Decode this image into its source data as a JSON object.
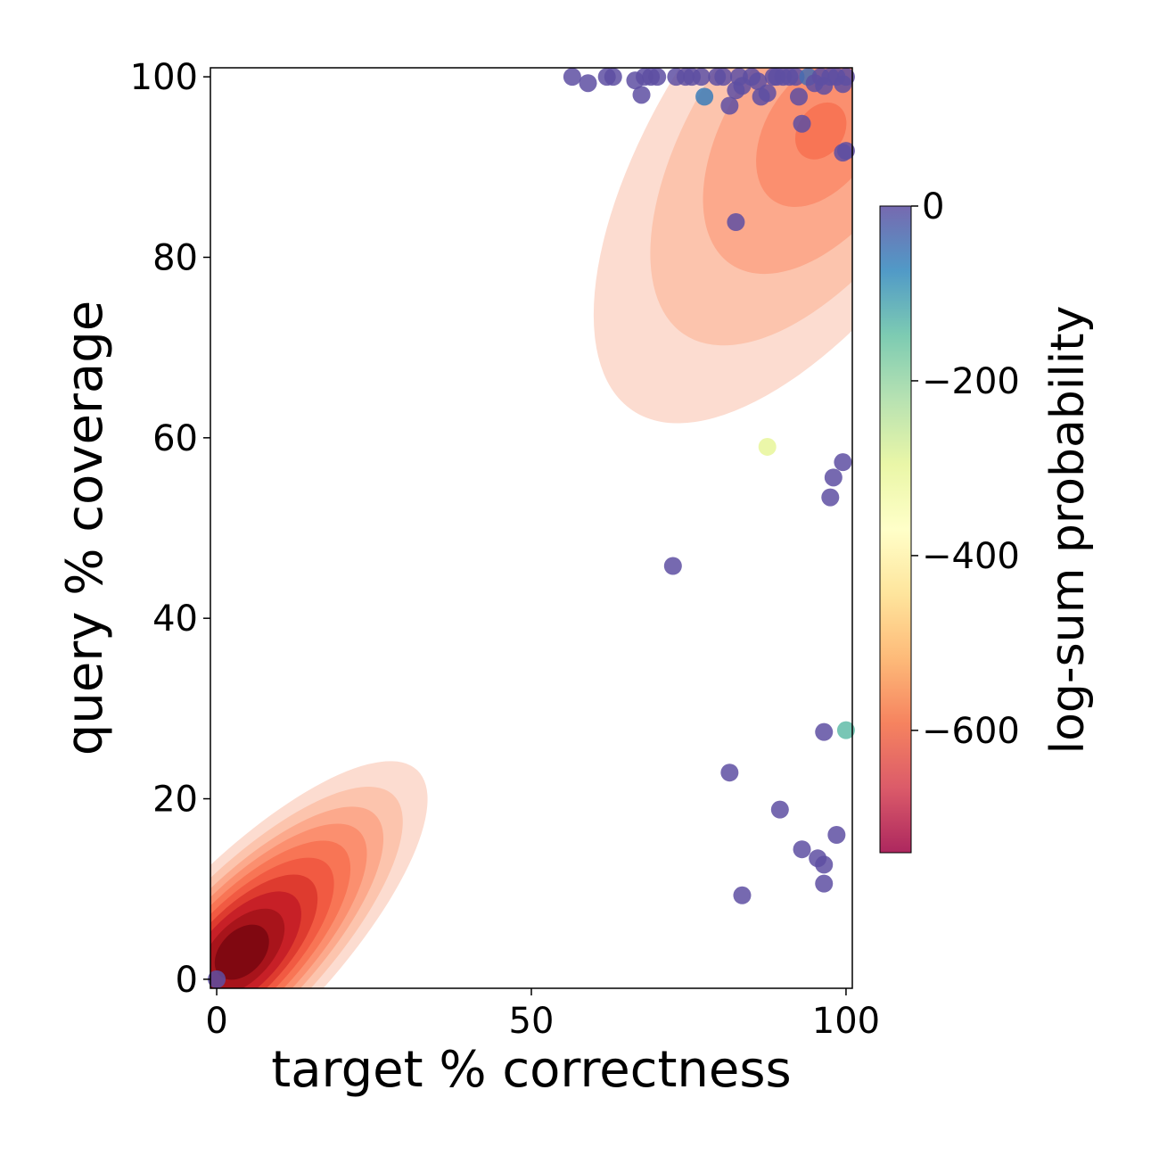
{
  "chart_data": {
    "type": "scatter",
    "xlabel": "target % correctness",
    "ylabel": "query % coverage",
    "xlim": [
      -1,
      101
    ],
    "ylim": [
      -1,
      101
    ],
    "x_ticks": [
      0,
      50,
      100
    ],
    "y_ticks": [
      0,
      20,
      40,
      60,
      80,
      100
    ],
    "grid": false,
    "density_contours": [
      {
        "name": "low-region",
        "center": [
          4,
          3
        ],
        "spread": [
          10,
          10
        ],
        "orientation_deg": 46,
        "levels": [
          {
            "sx": 3.3,
            "sy": 1.1,
            "color": "#fcdcd0"
          },
          {
            "sx": 2.85,
            "sy": 0.98,
            "color": "#fcc4ad"
          },
          {
            "sx": 2.5,
            "sy": 0.88,
            "color": "#fca98c"
          },
          {
            "sx": 2.2,
            "sy": 0.8,
            "color": "#fb8f6f"
          },
          {
            "sx": 1.9,
            "sy": 0.72,
            "color": "#f87555"
          },
          {
            "sx": 1.6,
            "sy": 0.64,
            "color": "#f15a42"
          },
          {
            "sx": 1.3,
            "sy": 0.56,
            "color": "#de3b2f"
          },
          {
            "sx": 1.0,
            "sy": 0.48,
            "color": "#c72027"
          },
          {
            "sx": 0.7,
            "sy": 0.38,
            "color": "#a8141b"
          },
          {
            "sx": 0.42,
            "sy": 0.28,
            "color": "#800811"
          }
        ]
      },
      {
        "name": "high-region",
        "center": [
          96,
          94
        ],
        "spread": [
          10,
          10
        ],
        "orientation_deg": 56,
        "levels": [
          {
            "sx": 4.4,
            "sy": 2.0,
            "color": "#fcdcd0"
          },
          {
            "sx": 3.2,
            "sy": 1.6,
            "color": "#fcc4ad"
          },
          {
            "sx": 2.1,
            "sy": 1.2,
            "color": "#fca98c"
          },
          {
            "sx": 1.1,
            "sy": 0.7,
            "color": "#fb8f6f"
          },
          {
            "sx": 0.4,
            "sy": 0.3,
            "color": "#f87555"
          }
        ]
      }
    ],
    "points": [
      {
        "x": 0,
        "y": 0,
        "c": 0
      },
      {
        "x": 56.5,
        "y": 100,
        "c": 0
      },
      {
        "x": 59,
        "y": 99.3,
        "c": 0
      },
      {
        "x": 62,
        "y": 100,
        "c": 0
      },
      {
        "x": 63,
        "y": 100,
        "c": 0
      },
      {
        "x": 66.5,
        "y": 99.6,
        "c": 0
      },
      {
        "x": 67.5,
        "y": 98,
        "c": 0
      },
      {
        "x": 68,
        "y": 100,
        "c": 0
      },
      {
        "x": 69,
        "y": 100,
        "c": 0
      },
      {
        "x": 70,
        "y": 100,
        "c": 0
      },
      {
        "x": 73,
        "y": 100,
        "c": 0
      },
      {
        "x": 74.5,
        "y": 100,
        "c": 0
      },
      {
        "x": 75.5,
        "y": 100,
        "c": 0
      },
      {
        "x": 77,
        "y": 100,
        "c": 0
      },
      {
        "x": 77.5,
        "y": 97.8,
        "c": -60
      },
      {
        "x": 79.5,
        "y": 100,
        "c": 0
      },
      {
        "x": 80.5,
        "y": 100,
        "c": 0
      },
      {
        "x": 81.5,
        "y": 96.8,
        "c": 0
      },
      {
        "x": 82.5,
        "y": 98.5,
        "c": 0
      },
      {
        "x": 83,
        "y": 100,
        "c": 0
      },
      {
        "x": 83.5,
        "y": 99,
        "c": 0
      },
      {
        "x": 85,
        "y": 100,
        "c": 0
      },
      {
        "x": 86,
        "y": 99.5,
        "c": 0
      },
      {
        "x": 86.5,
        "y": 97.8,
        "c": 0
      },
      {
        "x": 87.5,
        "y": 98.2,
        "c": 0
      },
      {
        "x": 88.5,
        "y": 100,
        "c": 0
      },
      {
        "x": 89,
        "y": 100,
        "c": 0
      },
      {
        "x": 90,
        "y": 100,
        "c": 0
      },
      {
        "x": 91,
        "y": 100,
        "c": 0
      },
      {
        "x": 92,
        "y": 100,
        "c": 0
      },
      {
        "x": 92.5,
        "y": 97.8,
        "c": 0
      },
      {
        "x": 93,
        "y": 94.8,
        "c": 0
      },
      {
        "x": 94,
        "y": 100,
        "c": -40
      },
      {
        "x": 95,
        "y": 99.3,
        "c": 0
      },
      {
        "x": 96,
        "y": 100,
        "c": 0
      },
      {
        "x": 96.5,
        "y": 99,
        "c": 0
      },
      {
        "x": 97.5,
        "y": 100,
        "c": 0
      },
      {
        "x": 98.5,
        "y": 100,
        "c": 0
      },
      {
        "x": 99.5,
        "y": 99.2,
        "c": 0
      },
      {
        "x": 100,
        "y": 100,
        "c": 0
      },
      {
        "x": 100,
        "y": 91.8,
        "c": 0
      },
      {
        "x": 99.5,
        "y": 91.6,
        "c": 0
      },
      {
        "x": 82.5,
        "y": 83.9,
        "c": 0
      },
      {
        "x": 87.5,
        "y": 59,
        "c": -300
      },
      {
        "x": 99.5,
        "y": 57.3,
        "c": 0
      },
      {
        "x": 98,
        "y": 55.6,
        "c": 0
      },
      {
        "x": 97.5,
        "y": 53.4,
        "c": 0
      },
      {
        "x": 72.5,
        "y": 45.8,
        "c": 0
      },
      {
        "x": 100,
        "y": 27.6,
        "c": -140
      },
      {
        "x": 96.5,
        "y": 27.4,
        "c": 0
      },
      {
        "x": 81.5,
        "y": 22.9,
        "c": 0
      },
      {
        "x": 89.5,
        "y": 18.8,
        "c": 0
      },
      {
        "x": 98.5,
        "y": 16,
        "c": 0
      },
      {
        "x": 93,
        "y": 14.4,
        "c": 0
      },
      {
        "x": 95.5,
        "y": 13.4,
        "c": 0
      },
      {
        "x": 96.5,
        "y": 12.7,
        "c": 0
      },
      {
        "x": 96.5,
        "y": 10.6,
        "c": 0
      },
      {
        "x": 83.5,
        "y": 9.3,
        "c": 0
      }
    ],
    "colorbar": {
      "label": "log-sum probability",
      "range": [
        -740,
        0
      ],
      "ticks": [
        0,
        -200,
        -400,
        -600
      ],
      "tick_labels": [
        "0",
        "−200",
        "−400",
        "−600"
      ],
      "colormap": "Spectral",
      "stops": [
        "#9e0142",
        "#d53e4f",
        "#f46d43",
        "#fdae61",
        "#fee08b",
        "#ffffbf",
        "#e6f598",
        "#abdda4",
        "#66c2a5",
        "#3288bd",
        "#5e4fa2"
      ]
    }
  }
}
